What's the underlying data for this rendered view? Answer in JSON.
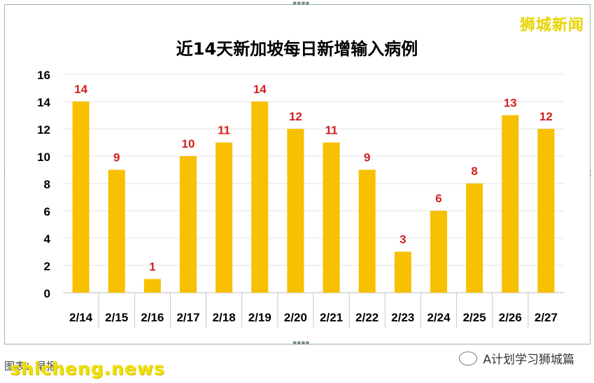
{
  "brand": "狮城新闻",
  "footer": {
    "wechat": "A计划学习狮城篇",
    "watermark": "shicheng.news",
    "source_fragment": "图表：早报 ·"
  },
  "chart_data": {
    "type": "bar",
    "title": "近14天新加坡每日新增输入病例",
    "categories": [
      "2/14",
      "2/15",
      "2/16",
      "2/17",
      "2/18",
      "2/19",
      "2/20",
      "2/21",
      "2/22",
      "2/23",
      "2/24",
      "2/25",
      "2/26",
      "2/27"
    ],
    "values": [
      14,
      9,
      1,
      10,
      11,
      14,
      12,
      11,
      9,
      3,
      6,
      8,
      13,
      12
    ],
    "ylim": [
      0,
      16
    ],
    "yticks": [
      0,
      2,
      4,
      6,
      8,
      10,
      12,
      14,
      16
    ],
    "bar_color": "#f7c000",
    "label_color": "#d42020",
    "grid": true
  }
}
